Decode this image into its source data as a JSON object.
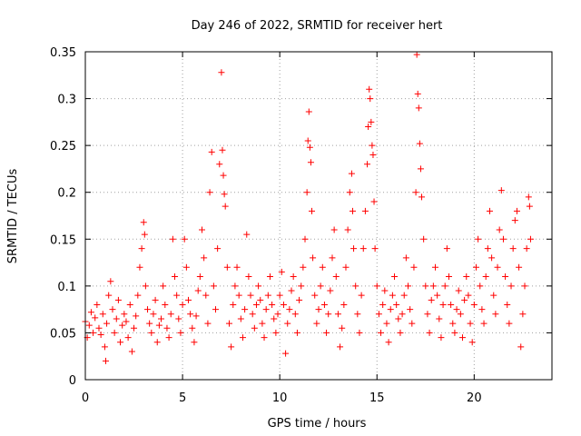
{
  "chart_data": {
    "type": "scatter",
    "title": "Day 246 of 2022, SRMTID for receiver hert",
    "xlabel": "GPS time / hours",
    "ylabel": "SRMTID / TECUs",
    "xlim": [
      0,
      24
    ],
    "ylim": [
      0,
      0.35
    ],
    "x_ticks": [
      0,
      5,
      10,
      15,
      20
    ],
    "x_tick_labels": [
      "0",
      "5",
      "10",
      "15",
      "20"
    ],
    "y_ticks": [
      0,
      0.05,
      0.1,
      0.15,
      0.2,
      0.25,
      0.3,
      0.35
    ],
    "y_tick_labels": [
      "0",
      "0.05",
      "0.1",
      "0.15",
      "0.2",
      "0.25",
      "0.3",
      "0.35"
    ],
    "grid": true,
    "marker": "+",
    "color": "#ff0000",
    "series": [
      {
        "name": "SRMTID",
        "points": [
          [
            0.0,
            0.062
          ],
          [
            0.1,
            0.045
          ],
          [
            0.2,
            0.058
          ],
          [
            0.3,
            0.072
          ],
          [
            0.4,
            0.05
          ],
          [
            0.5,
            0.066
          ],
          [
            0.6,
            0.08
          ],
          [
            0.7,
            0.055
          ],
          [
            0.8,
            0.048
          ],
          [
            0.9,
            0.07
          ],
          [
            1.0,
            0.035
          ],
          [
            1.05,
            0.02
          ],
          [
            1.1,
            0.06
          ],
          [
            1.2,
            0.09
          ],
          [
            1.3,
            0.105
          ],
          [
            1.4,
            0.075
          ],
          [
            1.5,
            0.05
          ],
          [
            1.6,
            0.065
          ],
          [
            1.7,
            0.085
          ],
          [
            1.8,
            0.04
          ],
          [
            1.9,
            0.058
          ],
          [
            2.0,
            0.07
          ],
          [
            2.1,
            0.062
          ],
          [
            2.2,
            0.045
          ],
          [
            2.3,
            0.08
          ],
          [
            2.4,
            0.03
          ],
          [
            2.5,
            0.055
          ],
          [
            2.6,
            0.068
          ],
          [
            2.7,
            0.09
          ],
          [
            2.8,
            0.12
          ],
          [
            2.9,
            0.14
          ],
          [
            3.0,
            0.168
          ],
          [
            3.05,
            0.155
          ],
          [
            3.1,
            0.1
          ],
          [
            3.2,
            0.075
          ],
          [
            3.3,
            0.06
          ],
          [
            3.4,
            0.05
          ],
          [
            3.5,
            0.07
          ],
          [
            3.6,
            0.085
          ],
          [
            3.7,
            0.04
          ],
          [
            3.8,
            0.058
          ],
          [
            3.9,
            0.065
          ],
          [
            4.0,
            0.1
          ],
          [
            4.1,
            0.08
          ],
          [
            4.2,
            0.055
          ],
          [
            4.3,
            0.045
          ],
          [
            4.4,
            0.07
          ],
          [
            4.5,
            0.15
          ],
          [
            4.6,
            0.11
          ],
          [
            4.7,
            0.09
          ],
          [
            4.8,
            0.065
          ],
          [
            4.9,
            0.05
          ],
          [
            5.0,
            0.08
          ],
          [
            5.1,
            0.15
          ],
          [
            5.2,
            0.12
          ],
          [
            5.3,
            0.085
          ],
          [
            5.4,
            0.07
          ],
          [
            5.5,
            0.055
          ],
          [
            5.6,
            0.04
          ],
          [
            5.7,
            0.068
          ],
          [
            5.8,
            0.095
          ],
          [
            5.9,
            0.11
          ],
          [
            6.0,
            0.16
          ],
          [
            6.1,
            0.13
          ],
          [
            6.2,
            0.09
          ],
          [
            6.3,
            0.06
          ],
          [
            6.4,
            0.2
          ],
          [
            6.5,
            0.243
          ],
          [
            6.6,
            0.1
          ],
          [
            6.7,
            0.075
          ],
          [
            6.8,
            0.14
          ],
          [
            6.9,
            0.23
          ],
          [
            7.0,
            0.328
          ],
          [
            7.05,
            0.245
          ],
          [
            7.1,
            0.218
          ],
          [
            7.15,
            0.198
          ],
          [
            7.2,
            0.185
          ],
          [
            7.3,
            0.12
          ],
          [
            7.4,
            0.06
          ],
          [
            7.5,
            0.035
          ],
          [
            7.6,
            0.08
          ],
          [
            7.7,
            0.1
          ],
          [
            7.8,
            0.12
          ],
          [
            7.9,
            0.09
          ],
          [
            8.0,
            0.065
          ],
          [
            8.1,
            0.045
          ],
          [
            8.2,
            0.075
          ],
          [
            8.3,
            0.155
          ],
          [
            8.4,
            0.11
          ],
          [
            8.5,
            0.09
          ],
          [
            8.6,
            0.07
          ],
          [
            8.7,
            0.055
          ],
          [
            8.8,
            0.08
          ],
          [
            8.9,
            0.1
          ],
          [
            9.0,
            0.085
          ],
          [
            9.1,
            0.06
          ],
          [
            9.2,
            0.045
          ],
          [
            9.3,
            0.075
          ],
          [
            9.4,
            0.09
          ],
          [
            9.5,
            0.11
          ],
          [
            9.6,
            0.08
          ],
          [
            9.7,
            0.065
          ],
          [
            9.8,
            0.05
          ],
          [
            9.9,
            0.07
          ],
          [
            10.0,
            0.09
          ],
          [
            10.1,
            0.115
          ],
          [
            10.2,
            0.08
          ],
          [
            10.3,
            0.028
          ],
          [
            10.4,
            0.06
          ],
          [
            10.5,
            0.075
          ],
          [
            10.6,
            0.095
          ],
          [
            10.7,
            0.11
          ],
          [
            10.8,
            0.07
          ],
          [
            10.9,
            0.05
          ],
          [
            11.0,
            0.085
          ],
          [
            11.1,
            0.1
          ],
          [
            11.2,
            0.12
          ],
          [
            11.3,
            0.15
          ],
          [
            11.4,
            0.2
          ],
          [
            11.45,
            0.255
          ],
          [
            11.5,
            0.286
          ],
          [
            11.55,
            0.248
          ],
          [
            11.6,
            0.232
          ],
          [
            11.65,
            0.18
          ],
          [
            11.7,
            0.13
          ],
          [
            11.8,
            0.09
          ],
          [
            11.9,
            0.06
          ],
          [
            12.0,
            0.075
          ],
          [
            12.1,
            0.1
          ],
          [
            12.2,
            0.12
          ],
          [
            12.3,
            0.08
          ],
          [
            12.4,
            0.05
          ],
          [
            12.5,
            0.07
          ],
          [
            12.6,
            0.095
          ],
          [
            12.7,
            0.13
          ],
          [
            12.8,
            0.16
          ],
          [
            12.9,
            0.11
          ],
          [
            13.0,
            0.07
          ],
          [
            13.1,
            0.035
          ],
          [
            13.2,
            0.055
          ],
          [
            13.3,
            0.08
          ],
          [
            13.4,
            0.12
          ],
          [
            13.5,
            0.16
          ],
          [
            13.6,
            0.2
          ],
          [
            13.7,
            0.22
          ],
          [
            13.75,
            0.18
          ],
          [
            13.8,
            0.14
          ],
          [
            13.9,
            0.1
          ],
          [
            14.0,
            0.07
          ],
          [
            14.1,
            0.05
          ],
          [
            14.2,
            0.09
          ],
          [
            14.3,
            0.14
          ],
          [
            14.4,
            0.18
          ],
          [
            14.5,
            0.23
          ],
          [
            14.55,
            0.27
          ],
          [
            14.6,
            0.31
          ],
          [
            14.65,
            0.3
          ],
          [
            14.7,
            0.275
          ],
          [
            14.75,
            0.25
          ],
          [
            14.8,
            0.24
          ],
          [
            14.85,
            0.19
          ],
          [
            14.9,
            0.14
          ],
          [
            15.0,
            0.1
          ],
          [
            15.1,
            0.07
          ],
          [
            15.2,
            0.05
          ],
          [
            15.3,
            0.08
          ],
          [
            15.4,
            0.095
          ],
          [
            15.5,
            0.06
          ],
          [
            15.6,
            0.04
          ],
          [
            15.7,
            0.075
          ],
          [
            15.8,
            0.09
          ],
          [
            15.9,
            0.11
          ],
          [
            16.0,
            0.08
          ],
          [
            16.1,
            0.065
          ],
          [
            16.2,
            0.05
          ],
          [
            16.3,
            0.07
          ],
          [
            16.4,
            0.09
          ],
          [
            16.5,
            0.13
          ],
          [
            16.6,
            0.1
          ],
          [
            16.7,
            0.075
          ],
          [
            16.8,
            0.06
          ],
          [
            16.9,
            0.12
          ],
          [
            17.0,
            0.2
          ],
          [
            17.05,
            0.347
          ],
          [
            17.1,
            0.305
          ],
          [
            17.15,
            0.29
          ],
          [
            17.2,
            0.252
          ],
          [
            17.25,
            0.225
          ],
          [
            17.3,
            0.195
          ],
          [
            17.4,
            0.15
          ],
          [
            17.5,
            0.1
          ],
          [
            17.6,
            0.07
          ],
          [
            17.7,
            0.05
          ],
          [
            17.8,
            0.085
          ],
          [
            17.9,
            0.1
          ],
          [
            18.0,
            0.12
          ],
          [
            18.1,
            0.09
          ],
          [
            18.2,
            0.065
          ],
          [
            18.3,
            0.045
          ],
          [
            18.4,
            0.08
          ],
          [
            18.5,
            0.1
          ],
          [
            18.6,
            0.14
          ],
          [
            18.7,
            0.11
          ],
          [
            18.8,
            0.08
          ],
          [
            18.9,
            0.06
          ],
          [
            19.0,
            0.05
          ],
          [
            19.1,
            0.075
          ],
          [
            19.2,
            0.095
          ],
          [
            19.3,
            0.07
          ],
          [
            19.4,
            0.045
          ],
          [
            19.5,
            0.085
          ],
          [
            19.6,
            0.11
          ],
          [
            19.7,
            0.09
          ],
          [
            19.8,
            0.06
          ],
          [
            19.9,
            0.04
          ],
          [
            20.0,
            0.08
          ],
          [
            20.1,
            0.12
          ],
          [
            20.2,
            0.15
          ],
          [
            20.3,
            0.1
          ],
          [
            20.4,
            0.075
          ],
          [
            20.5,
            0.06
          ],
          [
            20.6,
            0.11
          ],
          [
            20.7,
            0.14
          ],
          [
            20.8,
            0.18
          ],
          [
            20.9,
            0.13
          ],
          [
            21.0,
            0.09
          ],
          [
            21.1,
            0.07
          ],
          [
            21.2,
            0.12
          ],
          [
            21.3,
            0.16
          ],
          [
            21.4,
            0.202
          ],
          [
            21.5,
            0.15
          ],
          [
            21.6,
            0.11
          ],
          [
            21.7,
            0.08
          ],
          [
            21.8,
            0.06
          ],
          [
            21.9,
            0.1
          ],
          [
            22.0,
            0.14
          ],
          [
            22.1,
            0.17
          ],
          [
            22.2,
            0.18
          ],
          [
            22.3,
            0.12
          ],
          [
            22.4,
            0.035
          ],
          [
            22.5,
            0.07
          ],
          [
            22.6,
            0.1
          ],
          [
            22.7,
            0.14
          ],
          [
            22.8,
            0.195
          ],
          [
            22.85,
            0.185
          ],
          [
            22.9,
            0.15
          ]
        ]
      }
    ]
  }
}
